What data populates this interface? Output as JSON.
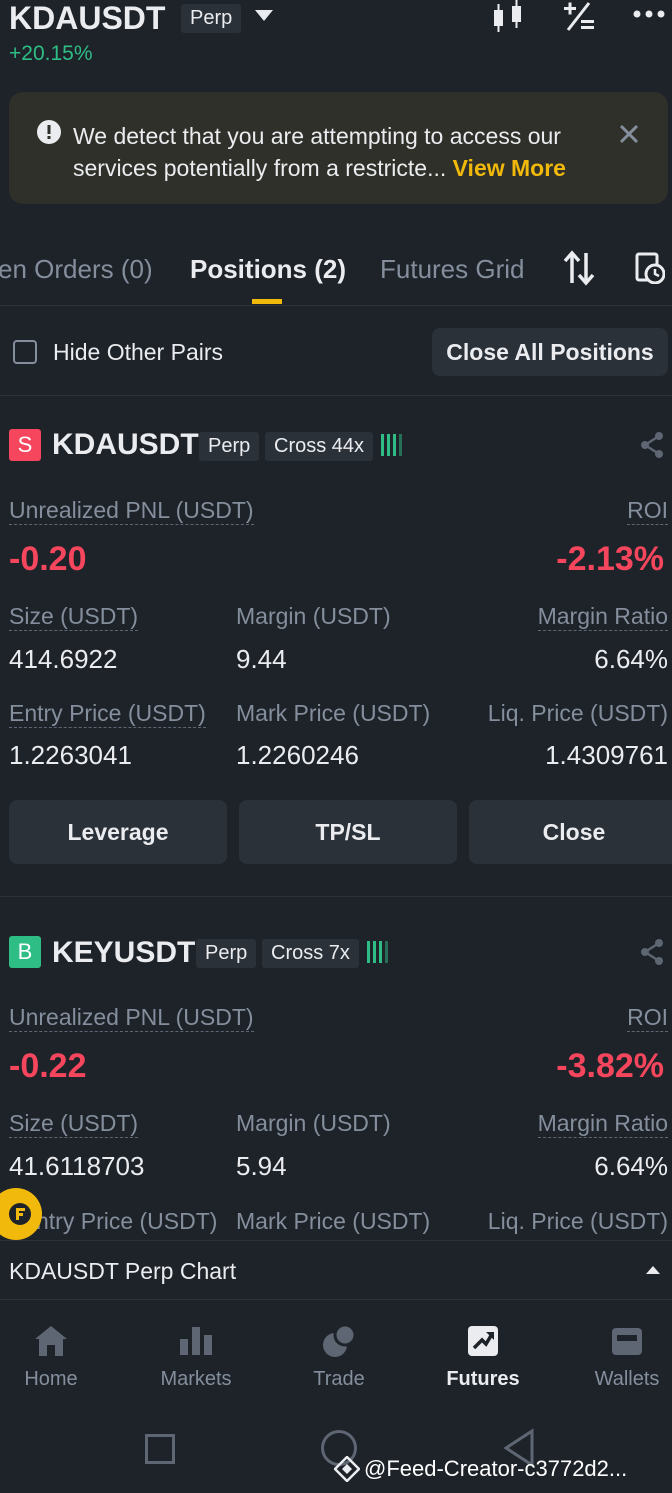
{
  "header": {
    "symbol": "KDAUSDT",
    "type_tag": "Perp",
    "change": "+20.15%"
  },
  "banner": {
    "text": "We detect that you are attempting to access our services potentially from a restricte...",
    "link": "View More"
  },
  "tabs": [
    {
      "label": "en Orders (0)"
    },
    {
      "label": "Positions (2)"
    },
    {
      "label": "Futures Grid"
    }
  ],
  "filter": {
    "hide_label": "Hide Other Pairs",
    "close_all_label": "Close All Positions"
  },
  "labels": {
    "pnl": "Unrealized PNL (USDT)",
    "roi": "ROI",
    "size": "Size (USDT)",
    "margin": "Margin (USDT)",
    "margin_ratio": "Margin Ratio",
    "entry": "Entry Price (USDT)",
    "mark": "Mark Price (USDT)",
    "liq": "Liq. Price (USDT)",
    "leverage_btn": "Leverage",
    "tpsl_btn": "TP/SL",
    "close_btn": "Close"
  },
  "positions": [
    {
      "side": "S",
      "symbol": "KDAUSDT",
      "type_tag": "Perp",
      "mode_tag": "Cross 44x",
      "pnl": "-0.20",
      "roi": "-2.13%",
      "size": "414.6922",
      "margin": "9.44",
      "margin_ratio": "6.64%",
      "entry": "1.2263041",
      "mark": "1.2260246",
      "liq": "1.4309761",
      "side_color": "#f6465d"
    },
    {
      "side": "B",
      "symbol": "KEYUSDT",
      "type_tag": "Perp",
      "mode_tag": "Cross 7x",
      "pnl": "-0.22",
      "roi": "-3.82%",
      "size": "41.6118703",
      "margin": "5.94",
      "margin_ratio": "6.64%",
      "side_color": "#2ebd85"
    }
  ],
  "partial_labels": {
    "entry": "ntry Price (USDT)",
    "mark": "Mark Price (USDT)",
    "liq": "Liq. Price (USDT)"
  },
  "chart_bar": {
    "label": "KDAUSDT Perp Chart"
  },
  "bottom_nav": [
    {
      "label": "Home",
      "icon": "home-icon"
    },
    {
      "label": "Markets",
      "icon": "markets-icon"
    },
    {
      "label": "Trade",
      "icon": "trade-icon"
    },
    {
      "label": "Futures",
      "icon": "futures-icon"
    },
    {
      "label": "Wallets",
      "icon": "wallet-icon"
    }
  ],
  "watermark": "@Feed-Creator-c3772d2...",
  "colors": {
    "bg": "#1e2329",
    "accent": "#f0b90b",
    "sell": "#f6465d",
    "buy": "#2ebd85"
  }
}
